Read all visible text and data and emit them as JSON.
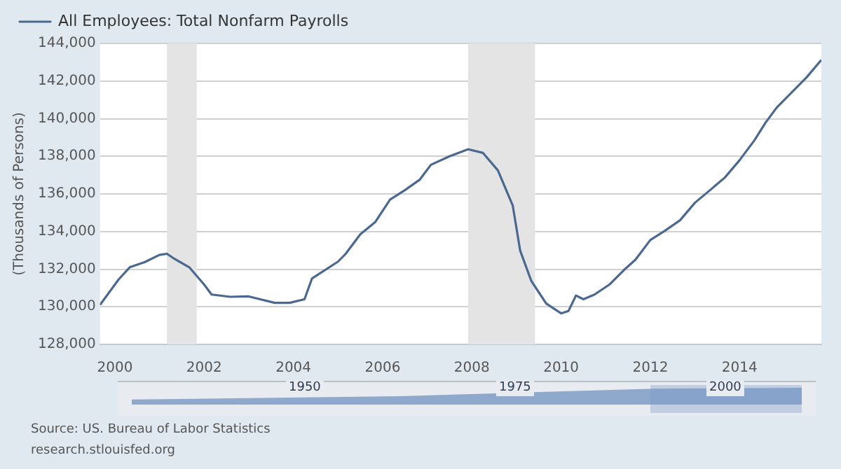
{
  "chart_data": {
    "type": "line",
    "ylabel": "(Thousands of Persons)",
    "legend": "top left",
    "grid": "y",
    "marker": "none",
    "line_style": "solid",
    "series": [
      {
        "name": "All Employees: Total Nonfarm Payrolls",
        "color": "#4a6890",
        "x": [
          "1999-09",
          "2000-02",
          "2000-05",
          "2000-09",
          "2001-01",
          "2001-03",
          "2001-05",
          "2001-09",
          "2002-01",
          "2002-03",
          "2002-08",
          "2003-01",
          "2003-08",
          "2003-12",
          "2004-04",
          "2004-06",
          "2005-01",
          "2005-03",
          "2005-07",
          "2005-11",
          "2006-03",
          "2006-07",
          "2006-11",
          "2007-02",
          "2007-07",
          "2007-12",
          "2008-04",
          "2008-08",
          "2008-12",
          "2009-02",
          "2009-05",
          "2009-09",
          "2010-01",
          "2010-03",
          "2010-05",
          "2010-07",
          "2010-10",
          "2011-02",
          "2011-06",
          "2011-09",
          "2012-01",
          "2012-05",
          "2012-09",
          "2013-01",
          "2013-05",
          "2013-09",
          "2014-01",
          "2014-05",
          "2014-08",
          "2014-11",
          "2015-03",
          "2015-07",
          "2015-11"
        ],
        "values": [
          130100,
          131450,
          132100,
          132370,
          132760,
          132820,
          132550,
          132100,
          131180,
          130650,
          130530,
          130550,
          130210,
          130210,
          130400,
          131500,
          132400,
          132800,
          133850,
          134500,
          135700,
          136200,
          136760,
          137550,
          138000,
          138370,
          138180,
          137250,
          135380,
          132980,
          131370,
          130170,
          129650,
          129780,
          130600,
          130400,
          130650,
          131180,
          131970,
          132500,
          133550,
          134050,
          134600,
          135530,
          136190,
          136860,
          137790,
          138850,
          139790,
          140590,
          141390,
          142190,
          143120
        ]
      }
    ],
    "xlim": [
      "1999-09",
      "2015-11"
    ],
    "xticks": [
      "2000",
      "2002",
      "2004",
      "2006",
      "2008",
      "2010",
      "2012",
      "2014"
    ],
    "ylim": [
      128000,
      144000
    ],
    "yticks": [
      {
        "value": 128000,
        "label": "128,000"
      },
      {
        "value": 130000,
        "label": "130,000"
      },
      {
        "value": 132000,
        "label": "132,000"
      },
      {
        "value": 134000,
        "label": "134,000"
      },
      {
        "value": 136000,
        "label": "136,000"
      },
      {
        "value": 138000,
        "label": "138,000"
      },
      {
        "value": 140000,
        "label": "140,000"
      },
      {
        "value": 142000,
        "label": "142,000"
      },
      {
        "value": 144000,
        "label": "144,000"
      }
    ],
    "bands": [
      {
        "axis": "x",
        "from": "2001-03",
        "to": "2001-11",
        "color": "#e4e4e4"
      },
      {
        "axis": "x",
        "from": "2007-12",
        "to": "2009-06",
        "color": "#e4e4e4"
      }
    ],
    "annotations": [
      "1950",
      "1975",
      "2000",
      "Source: US. Bureau of Labor Statistics",
      "research.stlouisfed.org"
    ]
  }
}
